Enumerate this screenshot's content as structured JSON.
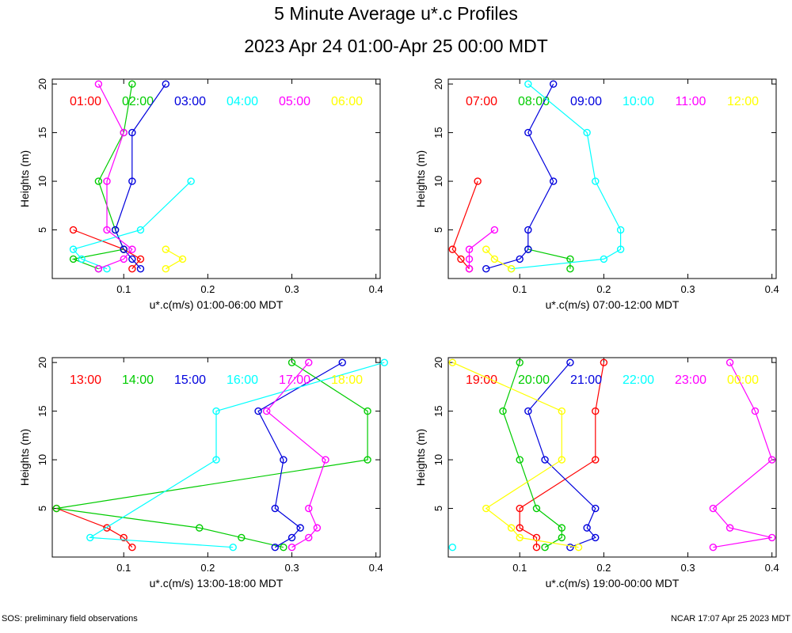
{
  "title": "5 Minute Average u*.c Profiles",
  "subtitle": "2023 Apr 24 01:00-Apr 25 00:00 MDT",
  "footer": {
    "left": "SOS: preliminary field observations",
    "right": "NCAR 17:07 Apr 25 2023 MDT"
  },
  "colors": [
    "#ff0000",
    "#00cc00",
    "#0000dd",
    "#00ffff",
    "#ff00ff",
    "#ffff00"
  ],
  "chart_data": [
    {
      "type": "line",
      "xlabel": "u*.c(m/s) 01:00-06:00 MDT",
      "ylabel": "Heights (m)",
      "xlim": [
        0.015,
        0.405
      ],
      "ylim": [
        0,
        20.5
      ],
      "xticks": [
        "0.1",
        "0.2",
        "0.3",
        "0.4"
      ],
      "yticks": [
        "5",
        "10",
        "15",
        "20"
      ],
      "series": [
        {
          "name": "01:00",
          "points": [
            [
              0.04,
              5
            ],
            [
              0.1,
              3
            ],
            [
              0.12,
              2
            ],
            [
              0.11,
              1
            ]
          ]
        },
        {
          "name": "02:00",
          "points": [
            [
              0.11,
              20
            ],
            [
              0.1,
              15
            ],
            [
              0.07,
              10
            ],
            [
              0.09,
              5
            ],
            [
              0.1,
              3
            ],
            [
              0.04,
              2
            ],
            [
              0.07,
              1
            ]
          ]
        },
        {
          "name": "03:00",
          "points": [
            [
              0.15,
              20
            ],
            [
              0.11,
              15
            ],
            [
              0.11,
              10
            ],
            [
              0.09,
              5
            ],
            [
              0.1,
              3
            ],
            [
              0.11,
              2
            ],
            [
              0.12,
              1
            ]
          ]
        },
        {
          "name": "04:00",
          "points": [
            [
              0.18,
              10
            ],
            [
              0.12,
              5
            ],
            [
              0.04,
              3
            ],
            [
              0.05,
              2
            ],
            [
              0.08,
              1
            ]
          ]
        },
        {
          "name": "05:00",
          "points": [
            [
              0.07,
              20
            ],
            [
              0.1,
              15
            ],
            [
              0.08,
              10
            ],
            [
              0.08,
              5
            ],
            [
              0.11,
              3
            ],
            [
              0.1,
              2
            ],
            [
              0.07,
              1
            ]
          ]
        },
        {
          "name": "06:00",
          "points": [
            [
              0.15,
              3
            ],
            [
              0.17,
              2
            ],
            [
              0.15,
              1
            ]
          ]
        }
      ]
    },
    {
      "type": "line",
      "xlabel": "u*.c(m/s) 07:00-12:00 MDT",
      "ylabel": "Heights (m)",
      "xlim": [
        0.015,
        0.405
      ],
      "ylim": [
        0,
        20.5
      ],
      "xticks": [
        "0.1",
        "0.2",
        "0.3",
        "0.4"
      ],
      "yticks": [
        "5",
        "10",
        "15",
        "20"
      ],
      "series": [
        {
          "name": "07:00",
          "points": [
            [
              0.05,
              10
            ],
            [
              0.02,
              3
            ],
            [
              0.03,
              2
            ],
            [
              0.04,
              1
            ]
          ]
        },
        {
          "name": "08:00",
          "points": [
            [
              0.11,
              3
            ],
            [
              0.16,
              2
            ],
            [
              0.16,
              1
            ]
          ]
        },
        {
          "name": "09:00",
          "points": [
            [
              0.14,
              20
            ],
            [
              0.11,
              15
            ],
            [
              0.14,
              10
            ],
            [
              0.11,
              5
            ],
            [
              0.11,
              3
            ],
            [
              0.1,
              2
            ],
            [
              0.06,
              1
            ]
          ]
        },
        {
          "name": "10:00",
          "points": [
            [
              0.11,
              20
            ],
            [
              0.18,
              15
            ],
            [
              0.19,
              10
            ],
            [
              0.22,
              5
            ],
            [
              0.22,
              3
            ],
            [
              0.2,
              2
            ],
            [
              0.09,
              1
            ]
          ]
        },
        {
          "name": "11:00",
          "points": [
            [
              0.07,
              5
            ],
            [
              0.04,
              3
            ],
            [
              0.04,
              2
            ],
            [
              0.04,
              1
            ]
          ]
        },
        {
          "name": "12:00",
          "points": [
            [
              0.06,
              3
            ],
            [
              0.07,
              2
            ],
            [
              0.09,
              1
            ]
          ]
        }
      ]
    },
    {
      "type": "line",
      "xlabel": "u*.c(m/s) 13:00-18:00 MDT",
      "ylabel": "Heights (m)",
      "xlim": [
        0.015,
        0.405
      ],
      "ylim": [
        0,
        20.5
      ],
      "xticks": [
        "0.1",
        "0.2",
        "0.3",
        "0.4"
      ],
      "yticks": [
        "5",
        "10",
        "15",
        "20"
      ],
      "series": [
        {
          "name": "13:00",
          "points": [
            [
              0.02,
              5
            ],
            [
              0.08,
              3
            ],
            [
              0.1,
              2
            ],
            [
              0.11,
              1
            ]
          ]
        },
        {
          "name": "14:00",
          "points": [
            [
              0.3,
              20
            ],
            [
              0.39,
              15
            ],
            [
              0.39,
              10
            ],
            [
              0.02,
              5
            ],
            [
              0.19,
              3
            ],
            [
              0.24,
              2
            ],
            [
              0.29,
              1
            ]
          ]
        },
        {
          "name": "15:00",
          "points": [
            [
              0.36,
              20
            ],
            [
              0.26,
              15
            ],
            [
              0.29,
              10
            ],
            [
              0.28,
              5
            ],
            [
              0.31,
              3
            ],
            [
              0.3,
              2
            ],
            [
              0.28,
              1
            ]
          ]
        },
        {
          "name": "16:00",
          "points": [
            [
              0.41,
              20
            ],
            [
              0.21,
              15
            ],
            [
              0.21,
              10
            ],
            [
              0.06,
              2
            ],
            [
              0.23,
              1
            ]
          ]
        },
        {
          "name": "17:00",
          "points": [
            [
              0.32,
              20
            ],
            [
              0.27,
              15
            ],
            [
              0.34,
              10
            ],
            [
              0.32,
              5
            ],
            [
              0.33,
              3
            ],
            [
              0.32,
              2
            ],
            [
              0.3,
              1
            ]
          ]
        },
        {
          "name": "18:00",
          "points": []
        }
      ]
    },
    {
      "type": "line",
      "xlabel": "u*.c(m/s) 19:00-00:00 MDT",
      "ylabel": "Heights (m)",
      "xlim": [
        0.015,
        0.405
      ],
      "ylim": [
        0,
        20.5
      ],
      "xticks": [
        "0.1",
        "0.2",
        "0.3",
        "0.4"
      ],
      "yticks": [
        "5",
        "10",
        "15",
        "20"
      ],
      "series": [
        {
          "name": "19:00",
          "points": [
            [
              0.2,
              20
            ],
            [
              0.19,
              15
            ],
            [
              0.19,
              10
            ],
            [
              0.1,
              5
            ],
            [
              0.1,
              3
            ],
            [
              0.12,
              2
            ],
            [
              0.12,
              1
            ]
          ]
        },
        {
          "name": "20:00",
          "points": [
            [
              0.1,
              20
            ],
            [
              0.08,
              15
            ],
            [
              0.1,
              10
            ],
            [
              0.12,
              5
            ],
            [
              0.15,
              3
            ],
            [
              0.15,
              2
            ],
            [
              0.13,
              1
            ]
          ]
        },
        {
          "name": "21:00",
          "points": [
            [
              0.16,
              20
            ],
            [
              0.11,
              15
            ],
            [
              0.13,
              10
            ],
            [
              0.19,
              5
            ],
            [
              0.18,
              3
            ],
            [
              0.19,
              2
            ],
            [
              0.16,
              1
            ]
          ]
        },
        {
          "name": "22:00",
          "points": [
            [
              0.02,
              1
            ]
          ]
        },
        {
          "name": "23:00",
          "points": [
            [
              0.35,
              20
            ],
            [
              0.38,
              15
            ],
            [
              0.4,
              10
            ],
            [
              0.33,
              5
            ],
            [
              0.35,
              3
            ],
            [
              0.4,
              2
            ],
            [
              0.33,
              1
            ]
          ]
        },
        {
          "name": "00:00",
          "points": [
            [
              0.02,
              20
            ],
            [
              0.15,
              15
            ],
            [
              0.15,
              10
            ],
            [
              0.06,
              5
            ],
            [
              0.09,
              3
            ],
            [
              0.1,
              2
            ],
            [
              0.17,
              1
            ]
          ]
        }
      ]
    }
  ]
}
